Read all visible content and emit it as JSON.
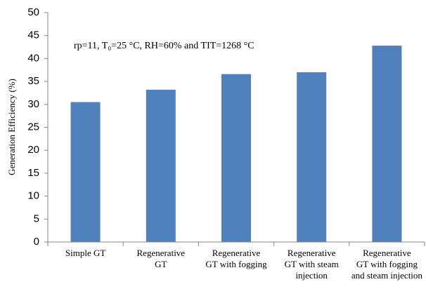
{
  "chart_data": {
    "type": "bar",
    "y_label": "Generation Efficiency (%)",
    "annotation": "rp=11, T₀=25 °C, RH=60% and TIT=1268 °C",
    "categories": [
      [
        "Simple GT"
      ],
      [
        "Regenerative",
        "GT"
      ],
      [
        "Regenerative",
        "GT with fogging"
      ],
      [
        "Regenerative",
        "GT with steam",
        "injection"
      ],
      [
        "Regenerative",
        "GT with fogging",
        "and steam injection"
      ]
    ],
    "values": [
      30.5,
      33.2,
      36.6,
      37.0,
      42.8
    ],
    "color": "#4f81bd",
    "ylim": [
      0,
      50
    ],
    "yticks": [
      0,
      5,
      10,
      15,
      20,
      25,
      30,
      35,
      40,
      45,
      50
    ]
  }
}
